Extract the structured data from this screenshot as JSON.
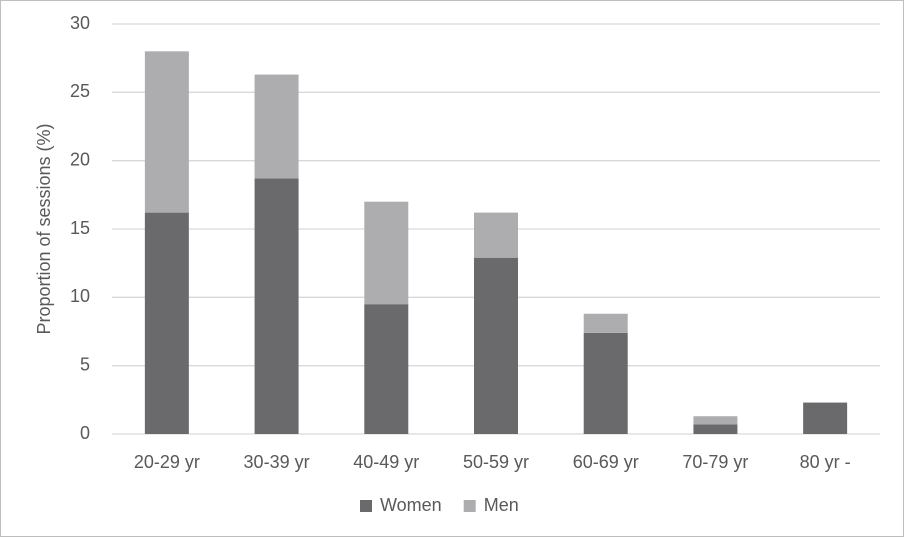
{
  "chart_data": {
    "type": "stacked-bar",
    "y_label": "Proportion of sessions (%)",
    "categories": [
      "20-29 yr",
      "30-39 yr",
      "40-49 yr",
      "50-59 yr",
      "60-69 yr",
      "70-79 yr",
      "80 yr -"
    ],
    "series": [
      {
        "name": "Women",
        "color": "#6a6a6d",
        "values": [
          16.2,
          18.7,
          9.5,
          12.9,
          7.4,
          0.7,
          2.3
        ]
      },
      {
        "name": "Men",
        "color": "#adadb0",
        "values": [
          11.8,
          7.6,
          7.5,
          3.3,
          1.4,
          0.6,
          0
        ]
      }
    ],
    "ylim": [
      0,
      30
    ],
    "yticks": [
      0,
      5,
      10,
      15,
      20,
      25,
      30
    ],
    "grid": true,
    "legend": "bottom"
  }
}
